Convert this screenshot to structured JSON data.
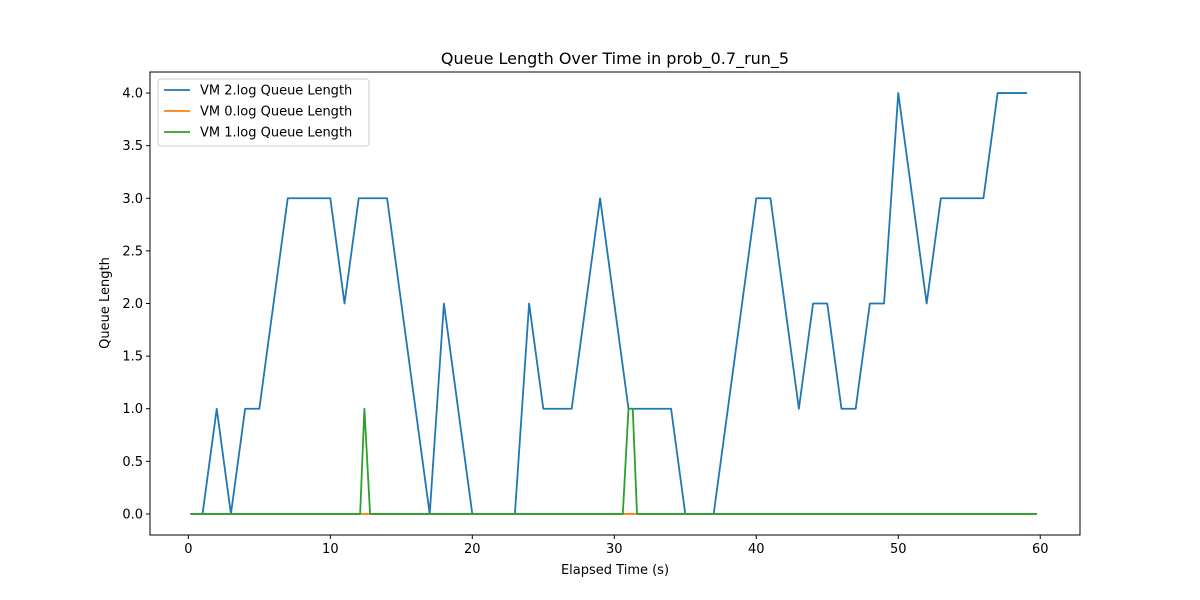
{
  "chart_data": {
    "type": "line",
    "title": "Queue Length Over Time in prob_0.7_run_5",
    "xlabel": "Elapsed Time (s)",
    "ylabel": "Queue Length",
    "xlim": [
      -2.7,
      62.8
    ],
    "ylim": [
      -0.2,
      4.2
    ],
    "xticks": [
      0,
      10,
      20,
      30,
      40,
      50,
      60
    ],
    "xtick_labels": [
      "0",
      "10",
      "20",
      "30",
      "40",
      "50",
      "60"
    ],
    "yticks": [
      0.0,
      0.5,
      1.0,
      1.5,
      2.0,
      2.5,
      3.0,
      3.5,
      4.0
    ],
    "ytick_labels": [
      "0.0",
      "0.5",
      "1.0",
      "1.5",
      "2.0",
      "2.5",
      "3.0",
      "3.5",
      "4.0"
    ],
    "grid": false,
    "legend_position": "upper-left",
    "series": [
      {
        "name": "VM 2.log Queue Length",
        "color": "#1f77b4",
        "points": [
          [
            1.0,
            0
          ],
          [
            2.0,
            1
          ],
          [
            3.0,
            0
          ],
          [
            4.0,
            1
          ],
          [
            5.0,
            1
          ],
          [
            7.0,
            3
          ],
          [
            10.0,
            3
          ],
          [
            11.0,
            2
          ],
          [
            12.0,
            3
          ],
          [
            14.0,
            3
          ],
          [
            17.0,
            0
          ],
          [
            18.0,
            2
          ],
          [
            20.0,
            0
          ],
          [
            23.0,
            0
          ],
          [
            24.0,
            2
          ],
          [
            25.0,
            1
          ],
          [
            27.0,
            1
          ],
          [
            29.0,
            3
          ],
          [
            31.0,
            1
          ],
          [
            34.0,
            1
          ],
          [
            35.0,
            0
          ],
          [
            37.0,
            0
          ],
          [
            40.0,
            3
          ],
          [
            41.0,
            3
          ],
          [
            43.0,
            1
          ],
          [
            44.0,
            2
          ],
          [
            45.0,
            2
          ],
          [
            46.0,
            1
          ],
          [
            47.0,
            1
          ],
          [
            48.0,
            2
          ],
          [
            49.0,
            2
          ],
          [
            50.0,
            4
          ],
          [
            52.0,
            2
          ],
          [
            53.0,
            3
          ],
          [
            56.0,
            3
          ],
          [
            57.0,
            4
          ],
          [
            59.0,
            4
          ]
        ]
      },
      {
        "name": "VM 0.log Queue Length",
        "color": "#ff7f0e",
        "points": [
          [
            0.2,
            0
          ],
          [
            59.7,
            0
          ]
        ]
      },
      {
        "name": "VM 1.log Queue Length",
        "color": "#2ca02c",
        "points": [
          [
            0.2,
            0
          ],
          [
            12.1,
            0
          ],
          [
            12.4,
            1
          ],
          [
            12.8,
            0
          ],
          [
            30.6,
            0
          ],
          [
            31.0,
            1
          ],
          [
            31.3,
            1
          ],
          [
            31.6,
            0
          ],
          [
            59.7,
            0
          ]
        ]
      }
    ]
  }
}
